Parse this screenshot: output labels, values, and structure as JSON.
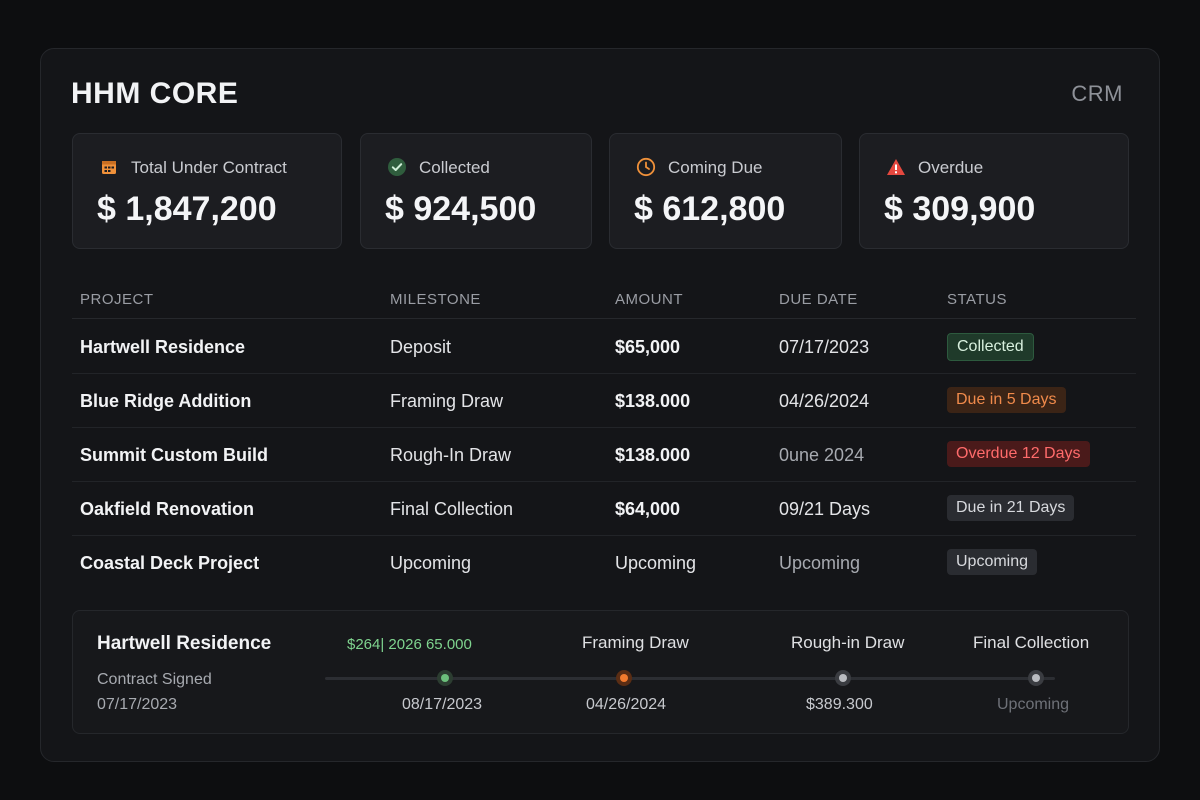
{
  "app": {
    "title": "HHM CORE",
    "section": "CRM"
  },
  "summary": [
    {
      "label": "Total Under Contract",
      "value": "$ 1,847,200",
      "icon": "calendar-icon",
      "color": "#f0913a"
    },
    {
      "label": "Collected",
      "value": "$ 924,500",
      "icon": "check-circle-icon",
      "color": "#5cc07a"
    },
    {
      "label": "Coming Due",
      "value": "$ 612,800",
      "icon": "clock-icon",
      "color": "#f0913a"
    },
    {
      "label": "Overdue",
      "value": "$ 309,900",
      "icon": "warning-icon",
      "color": "#e5483f"
    }
  ],
  "table": {
    "headers": [
      "PROJECT",
      "MILESTONE",
      "AMOUNT",
      "DUE DATE",
      "STATUS"
    ],
    "rows": [
      {
        "project": "Hartwell Residence",
        "milestone": "Deposit",
        "amount": "$65,000",
        "due": "07/17/2023",
        "status": "Collected",
        "status_type": "collected"
      },
      {
        "project": "Blue Ridge Addition",
        "milestone": "Framing Draw",
        "amount": "$138.000",
        "due": "04/26/2024",
        "status": "Due in 5 Days",
        "status_type": "due"
      },
      {
        "project": "Summit Custom Build",
        "milestone": "Rough-In Draw",
        "amount": "$138.000",
        "due": "0une 2024",
        "status": "Overdue 12 Days",
        "status_type": "overdue"
      },
      {
        "project": "Oakfield Renovation",
        "milestone": "Final Collection",
        "amount": "$64,000",
        "due": "09/21 Days",
        "status": "Due in 21 Days",
        "status_type": "neutral"
      },
      {
        "project": "Coastal Deck Project",
        "milestone": "Upcoming",
        "amount": "Upcoming",
        "due": "Upcoming",
        "status": "Upcoming",
        "status_type": "neutral"
      }
    ]
  },
  "timeline": {
    "project": "Hartwell Residence",
    "start_label": "Contract Signed",
    "start_date": "07/17/2023",
    "green_note": "$264| 2026  65.000",
    "steps": [
      {
        "label": "",
        "date": "08/17/2023",
        "state": "done"
      },
      {
        "label": "Framing Draw",
        "date": "04/26/2024",
        "state": "current"
      },
      {
        "label": "Rough-in Draw",
        "date": "$389.300",
        "state": "pending"
      },
      {
        "label": "Final Collection",
        "date": "Upcoming",
        "state": "pending"
      }
    ]
  }
}
